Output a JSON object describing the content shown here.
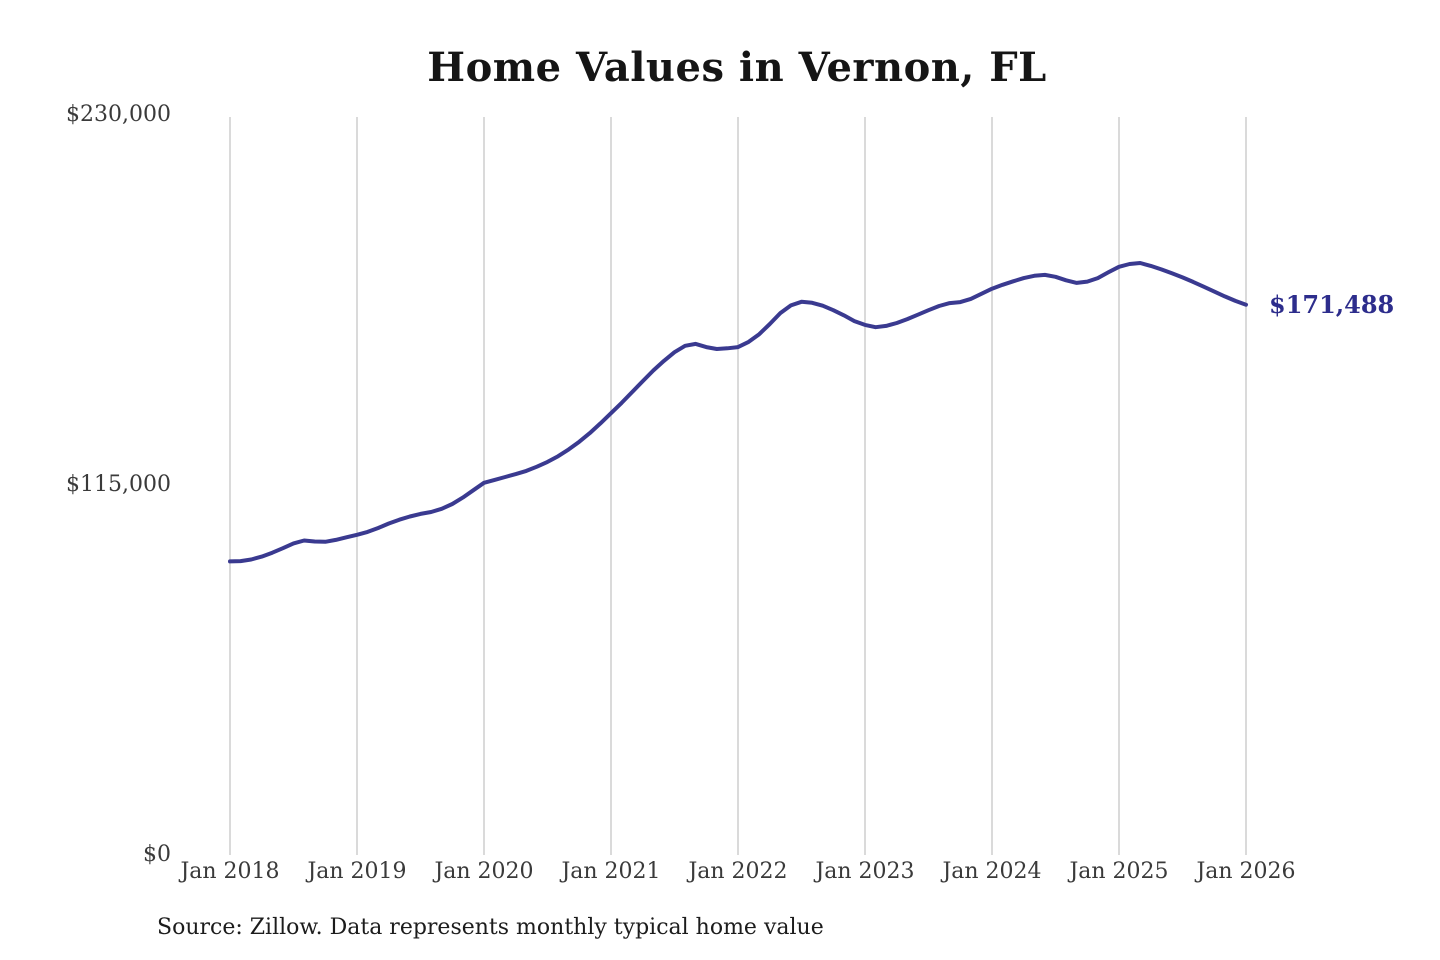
{
  "title": "Home Values in Vernon, FL",
  "source_note": "Source: Zillow. Data represents monthly typical home value",
  "end_label": "$171,488",
  "colors": {
    "line": "#3a3a90",
    "end_label": "#2d2d8c",
    "gridline": "#c6c6c6",
    "axis_text": "#3a3a3a",
    "title_text": "#151515",
    "source_text": "#1c1c1c",
    "background": "#ffffff"
  },
  "chart_data": {
    "type": "line",
    "title": "Home Values in Vernon, FL",
    "xlabel": "",
    "ylabel": "",
    "ylim": [
      0,
      230000
    ],
    "grid": "vertical-only",
    "legend": "none",
    "frequency": "monthly",
    "start_month": "2018-01",
    "end_month": "2026-01",
    "x_tick_labels": [
      "Jan 2018",
      "Jan 2019",
      "Jan 2020",
      "Jan 2021",
      "Jan 2022",
      "Jan 2023",
      "Jan 2024",
      "Jan 2025",
      "Jan 2026"
    ],
    "y_tick_labels": [
      "$0",
      "$115,000",
      "$230,000"
    ],
    "y_tick_values": [
      0,
      115000,
      230000
    ],
    "final_value": 171488,
    "final_value_label": "$171,488",
    "series": [
      {
        "name": "Monthly typical home value",
        "values": [
          91500,
          91600,
          92100,
          93000,
          94200,
          95600,
          97100,
          98000,
          97700,
          97600,
          98200,
          99000,
          99800,
          100700,
          101900,
          103300,
          104500,
          105500,
          106300,
          106900,
          107900,
          109400,
          111400,
          113700,
          116000,
          116900,
          117800,
          118700,
          119700,
          121000,
          122500,
          124300,
          126400,
          128800,
          131500,
          134500,
          137700,
          140900,
          144300,
          147700,
          151000,
          154000,
          156700,
          158700,
          159300,
          158300,
          157700,
          157900,
          158300,
          159900,
          162300,
          165500,
          168900,
          171300,
          172400,
          172100,
          171200,
          169800,
          168200,
          166400,
          165200,
          164500,
          164900,
          165800,
          167000,
          168400,
          169800,
          171100,
          172000,
          172300,
          173300,
          174900,
          176500,
          177700,
          178800,
          179800,
          180500,
          180800,
          180200,
          179100,
          178300,
          178700,
          179800,
          181600,
          183300,
          184200,
          184500,
          183600,
          182500,
          181300,
          180000,
          178600,
          177100,
          175600,
          174100,
          172700,
          171488
        ]
      }
    ]
  }
}
